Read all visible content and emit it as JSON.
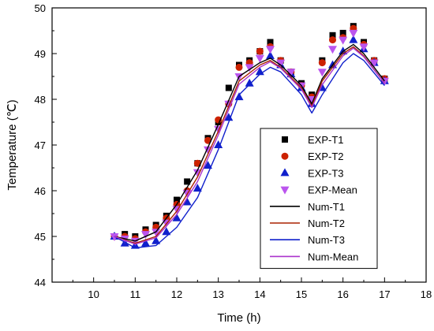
{
  "chart_data": {
    "type": "line",
    "xlabel": "Time (h)",
    "ylabel": "Temperature (℃)",
    "xlim": [
      9,
      18
    ],
    "ylim": [
      44,
      50
    ],
    "xticks": [
      "10",
      "11",
      "12",
      "13",
      "14",
      "15",
      "16",
      "17",
      "18"
    ],
    "yticks": [
      "44",
      "45",
      "46",
      "47",
      "48",
      "49",
      "50"
    ],
    "legend_position": "center-right",
    "grid": false,
    "series": [
      {
        "name": "EXP-T1",
        "kind": "scatter",
        "marker": "square",
        "color": "#000000",
        "x": [
          10.5,
          10.75,
          11,
          11.25,
          11.5,
          11.75,
          12,
          12.25,
          12.5,
          12.75,
          13,
          13.25,
          13.5,
          13.75,
          14,
          14.25,
          14.5,
          14.75,
          15,
          15.25,
          15.5,
          15.75,
          16,
          16.25,
          16.5,
          16.75,
          17
        ],
        "y": [
          45.0,
          45.05,
          45.0,
          45.15,
          45.25,
          45.45,
          45.8,
          46.2,
          46.6,
          47.15,
          47.5,
          48.25,
          48.75,
          48.85,
          49.05,
          49.25,
          48.85,
          48.6,
          48.35,
          48.1,
          48.85,
          49.4,
          49.45,
          49.6,
          49.25,
          48.85,
          48.45
        ]
      },
      {
        "name": "EXP-T2",
        "kind": "scatter",
        "marker": "circle",
        "color": "#cc2200",
        "x": [
          10.5,
          10.75,
          11,
          11.25,
          11.5,
          11.75,
          12,
          12.25,
          12.5,
          12.75,
          13,
          13.25,
          13.5,
          13.75,
          14,
          14.25,
          14.5,
          14.75,
          15,
          15.25,
          15.5,
          15.75,
          16,
          16.25,
          16.5,
          16.75,
          17
        ],
        "y": [
          45.0,
          45.0,
          44.95,
          45.1,
          45.2,
          45.4,
          45.7,
          46.0,
          46.6,
          47.1,
          47.55,
          47.9,
          48.7,
          48.8,
          49.05,
          49.15,
          48.85,
          48.6,
          48.3,
          48.05,
          48.8,
          49.3,
          49.35,
          49.55,
          49.2,
          48.85,
          48.45
        ]
      },
      {
        "name": "EXP-T3",
        "kind": "scatter",
        "marker": "triangle-up",
        "color": "#1020cc",
        "x": [
          10.5,
          10.75,
          11,
          11.25,
          11.5,
          11.75,
          12,
          12.25,
          12.5,
          12.75,
          13,
          13.25,
          13.5,
          13.75,
          14,
          14.25,
          14.5,
          14.75,
          15,
          15.25,
          15.5,
          15.75,
          16,
          16.25,
          16.5,
          16.75,
          17
        ],
        "y": [
          45.0,
          44.85,
          44.8,
          44.85,
          44.9,
          45.1,
          45.4,
          45.75,
          46.05,
          46.55,
          47.0,
          47.6,
          48.05,
          48.35,
          48.6,
          48.95,
          48.75,
          48.55,
          48.25,
          47.9,
          48.25,
          48.75,
          49.05,
          49.3,
          49.1,
          48.8,
          48.4
        ]
      },
      {
        "name": "EXP-Mean",
        "kind": "scatter",
        "marker": "triangle-down",
        "color": "#bb55ee",
        "x": [
          10.5,
          10.75,
          11,
          11.25,
          11.5,
          11.75,
          12,
          12.25,
          12.5,
          12.75,
          13,
          13.25,
          13.5,
          13.75,
          14,
          14.25,
          14.5,
          14.75,
          15,
          15.25,
          15.5,
          15.75,
          16,
          16.25,
          16.5,
          16.75,
          17
        ],
        "y": [
          45.0,
          44.95,
          44.9,
          45.05,
          45.1,
          45.3,
          45.6,
          45.95,
          46.4,
          46.9,
          47.35,
          47.9,
          48.5,
          48.7,
          48.9,
          49.1,
          48.8,
          48.6,
          48.3,
          48.0,
          48.6,
          49.1,
          49.3,
          49.45,
          49.15,
          48.8,
          48.4
        ]
      },
      {
        "name": "Num-T1",
        "kind": "line",
        "color": "#000000",
        "x": [
          10.5,
          11,
          11.5,
          12,
          12.5,
          13,
          13.5,
          14,
          14.25,
          14.5,
          15,
          15.25,
          15.5,
          16,
          16.25,
          16.5,
          17
        ],
        "y": [
          45.0,
          44.9,
          45.1,
          45.7,
          46.45,
          47.45,
          48.5,
          48.8,
          48.9,
          48.75,
          48.3,
          47.9,
          48.45,
          49.05,
          49.2,
          49.0,
          48.4
        ]
      },
      {
        "name": "Num-T2",
        "kind": "line",
        "color": "#aa2200",
        "x": [
          10.5,
          11,
          11.5,
          12,
          12.5,
          13,
          13.5,
          14,
          14.25,
          14.5,
          15,
          15.25,
          15.5,
          16,
          16.25,
          16.5,
          17
        ],
        "y": [
          45.0,
          44.85,
          45.0,
          45.55,
          46.3,
          47.3,
          48.4,
          48.75,
          48.85,
          48.7,
          48.25,
          47.85,
          48.4,
          49.0,
          49.15,
          48.95,
          48.35
        ]
      },
      {
        "name": "Num-T3",
        "kind": "line",
        "color": "#1020cc",
        "x": [
          10.5,
          11,
          11.5,
          12,
          12.5,
          13,
          13.5,
          14,
          14.25,
          14.5,
          15,
          15.25,
          15.5,
          16,
          16.25,
          16.5,
          17
        ],
        "y": [
          45.0,
          44.75,
          44.8,
          45.2,
          45.85,
          46.9,
          48.1,
          48.55,
          48.7,
          48.6,
          48.1,
          47.7,
          48.1,
          48.8,
          49.0,
          48.85,
          48.3
        ]
      },
      {
        "name": "Num-Mean",
        "kind": "line",
        "color": "#aa33cc",
        "x": [
          10.5,
          11,
          11.5,
          12,
          12.5,
          13,
          13.5,
          14,
          14.25,
          14.5,
          15,
          15.25,
          15.5,
          16,
          16.25,
          16.5,
          17
        ],
        "y": [
          45.0,
          44.83,
          44.97,
          45.48,
          46.2,
          47.22,
          48.33,
          48.7,
          48.82,
          48.68,
          48.22,
          47.82,
          48.32,
          48.95,
          49.12,
          48.93,
          48.35
        ]
      }
    ]
  }
}
